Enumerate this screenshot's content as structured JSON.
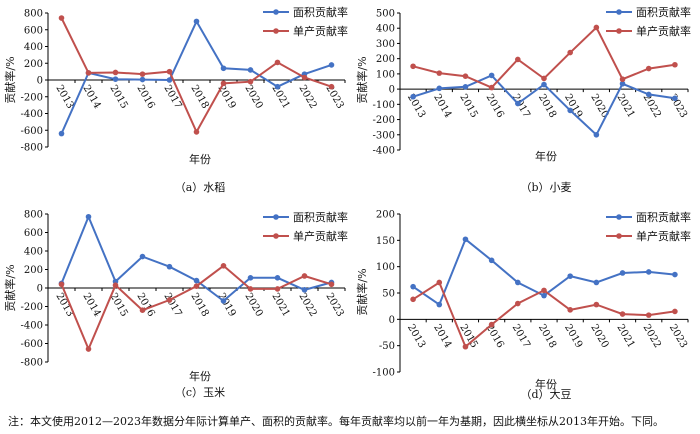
{
  "colors": {
    "area": "#4472C4",
    "yield": "#C0504D",
    "axis": "#000000",
    "text": "#111111"
  },
  "chart_data": [
    {
      "type": "line",
      "caption": "（a）水稻",
      "title": "",
      "xlabel": "年份",
      "ylabel": "贡献率/%",
      "categories": [
        "2013",
        "2014",
        "2015",
        "2016",
        "2017",
        "2018",
        "2019",
        "2020",
        "2021",
        "2022",
        "2023"
      ],
      "ylim": [
        -800,
        800
      ],
      "yticks": [
        "800",
        "600",
        "400",
        "200",
        "0",
        "-200",
        "-400",
        "-600",
        "-800"
      ],
      "legend": [
        "面积贡献率",
        "单产贡献率"
      ],
      "series": [
        {
          "name": "面积贡献率",
          "values": [
            -640,
            85,
            10,
            5,
            0,
            700,
            140,
            120,
            -80,
            70,
            180
          ]
        },
        {
          "name": "单产贡献率",
          "values": [
            740,
            85,
            90,
            70,
            100,
            -620,
            -40,
            -20,
            210,
            30,
            -80
          ]
        }
      ]
    },
    {
      "type": "line",
      "caption": "（b）小麦",
      "title": "",
      "xlabel": "年份",
      "ylabel": "贡献率/%",
      "categories": [
        "2013",
        "2014",
        "2015",
        "2016",
        "2017",
        "2018",
        "2019",
        "2020",
        "2021",
        "2022",
        "2023"
      ],
      "ylim": [
        -400,
        500
      ],
      "yticks": [
        "500",
        "400",
        "300",
        "200",
        "100",
        "0",
        "-100",
        "-200",
        "-300",
        "-400"
      ],
      "legend": [
        "面积贡献率",
        "单产贡献率"
      ],
      "series": [
        {
          "name": "面积贡献率",
          "values": [
            -50,
            5,
            15,
            90,
            -95,
            30,
            -140,
            -300,
            35,
            -35,
            -60
          ]
        },
        {
          "name": "单产贡献率",
          "values": [
            150,
            105,
            85,
            10,
            195,
            70,
            240,
            405,
            65,
            135,
            160
          ]
        }
      ]
    },
    {
      "type": "line",
      "caption": "（c）玉米",
      "title": "",
      "xlabel": "年份",
      "ylabel": "贡献率/%",
      "categories": [
        "2013",
        "2014",
        "2015",
        "2016",
        "2017",
        "2018",
        "2019",
        "2020",
        "2021",
        "2022",
        "2023"
      ],
      "ylim": [
        -800,
        800
      ],
      "yticks": [
        "800",
        "600",
        "400",
        "200",
        "0",
        "-200",
        "-400",
        "-600",
        "-800"
      ],
      "legend": [
        "面积贡献率",
        "单产贡献率"
      ],
      "series": [
        {
          "name": "面积贡献率",
          "values": [
            50,
            770,
            70,
            340,
            230,
            80,
            -140,
            110,
            110,
            -20,
            60
          ]
        },
        {
          "name": "单产贡献率",
          "values": [
            40,
            -660,
            30,
            -240,
            -130,
            20,
            240,
            -10,
            -10,
            130,
            40
          ]
        }
      ]
    },
    {
      "type": "line",
      "caption": "（d）大豆",
      "title": "",
      "xlabel": "年份",
      "ylabel": "贡献率/%",
      "categories": [
        "2013",
        "2014",
        "2015",
        "2016",
        "2017",
        "2018",
        "2019",
        "2020",
        "2021",
        "2022",
        "2023"
      ],
      "ylim": [
        -100,
        200
      ],
      "yticks": [
        "200",
        "150",
        "100",
        "50",
        "0",
        "-50",
        "-100"
      ],
      "legend": [
        "面积贡献率",
        "单产贡献率"
      ],
      "series": [
        {
          "name": "面积贡献率",
          "values": [
            62,
            28,
            152,
            112,
            70,
            45,
            82,
            70,
            88,
            90,
            85
          ]
        },
        {
          "name": "单产贡献率",
          "values": [
            38,
            70,
            -52,
            -10,
            30,
            55,
            18,
            28,
            10,
            8,
            15
          ]
        }
      ]
    }
  ],
  "footnote": "注：本文使用2012—2023年数据分年际计算单产、面积的贡献率。每年贡献率均以前一年为基期，因此横坐标从2013年开始。下同。"
}
